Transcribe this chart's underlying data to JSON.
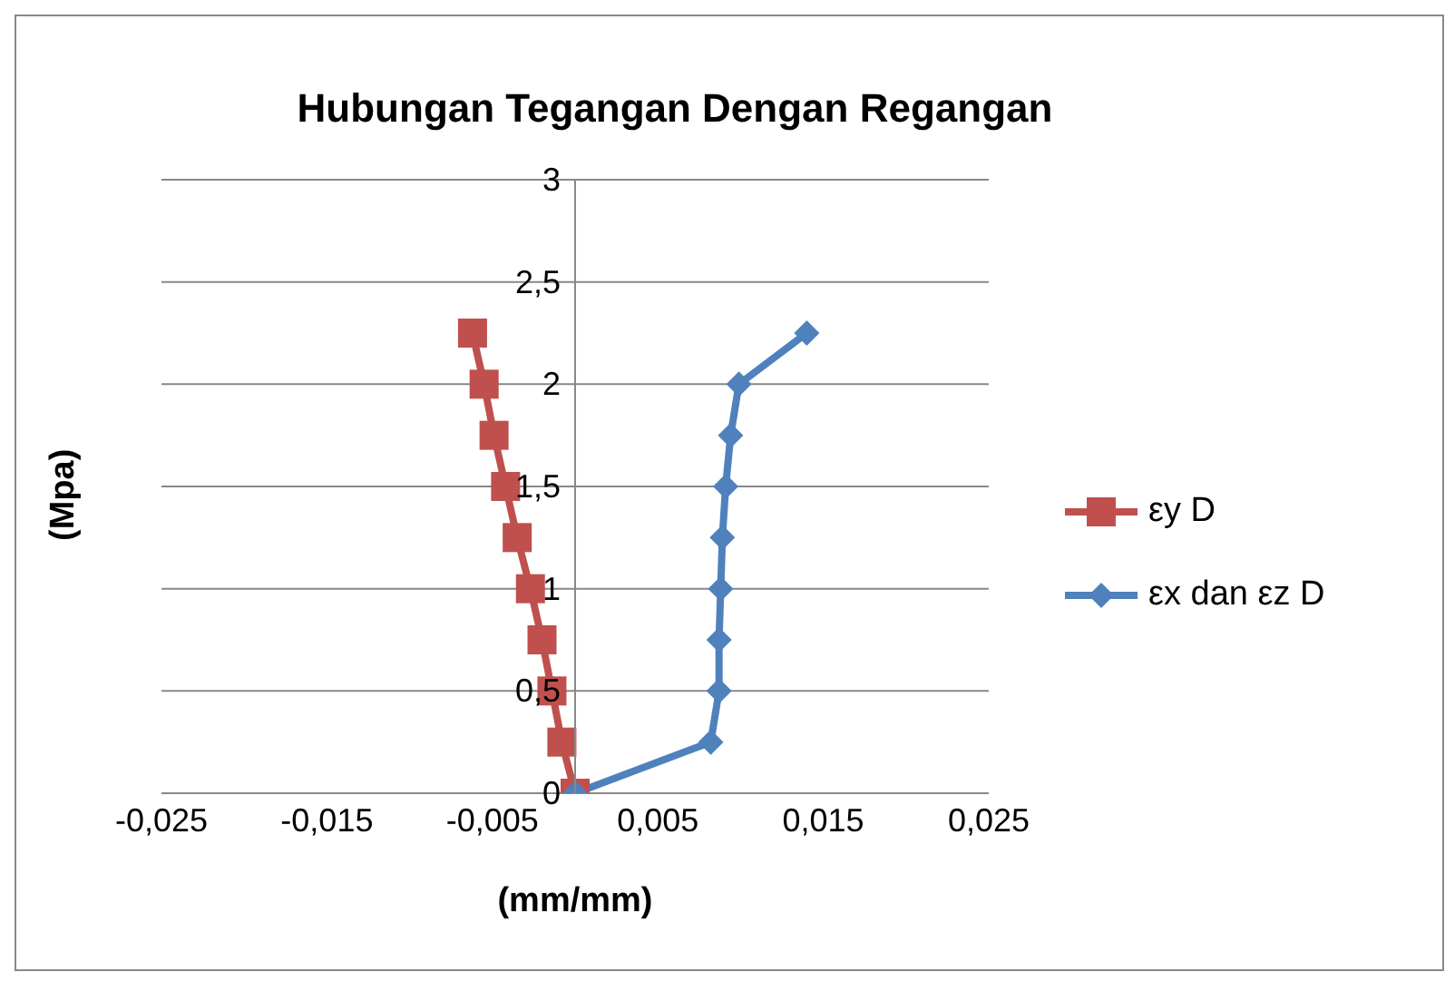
{
  "chart_data": {
    "type": "line",
    "title": "Hubungan Tegangan Dengan Regangan",
    "xlabel": "(mm/mm)",
    "ylabel": "(Mpa)",
    "xlim": [
      -0.025,
      0.025
    ],
    "xticks": [
      {
        "value": -0.025,
        "label": "-0,025"
      },
      {
        "value": -0.015,
        "label": "-0,015"
      },
      {
        "value": -0.005,
        "label": "-0,005"
      },
      {
        "value": 0.005,
        "label": "0,005"
      },
      {
        "value": 0.015,
        "label": "0,015"
      },
      {
        "value": 0.025,
        "label": "0,025"
      }
    ],
    "ylim": [
      0,
      3
    ],
    "yticks": [
      0,
      {
        "value": 0.5,
        "label": "0,5"
      },
      1,
      {
        "value": 1.5,
        "label": "1,5"
      },
      2,
      {
        "value": 2.5,
        "label": "2,5"
      },
      3
    ],
    "grid": "y",
    "legend": "right",
    "series": [
      {
        "name": "εy D",
        "color": "#c0504d",
        "marker": "square",
        "x": [
          0,
          -0.0008,
          -0.0014,
          -0.002,
          -0.0027,
          -0.0035,
          -0.0042,
          -0.0049,
          -0.0055,
          -0.0062
        ],
        "values": [
          0,
          0.25,
          0.5,
          0.75,
          1,
          1.25,
          1.5,
          1.75,
          2,
          2.25
        ]
      },
      {
        "name": "εx dan εz D",
        "color": "#4f81bd",
        "marker": "diamond",
        "x": [
          0,
          0.0082,
          0.0087,
          0.0087,
          0.0088,
          0.0089,
          0.0091,
          0.0094,
          0.0099,
          0.014
        ],
        "values": [
          0,
          0.25,
          0.5,
          0.75,
          1,
          1.25,
          1.5,
          1.75,
          2,
          2.25
        ]
      }
    ]
  }
}
